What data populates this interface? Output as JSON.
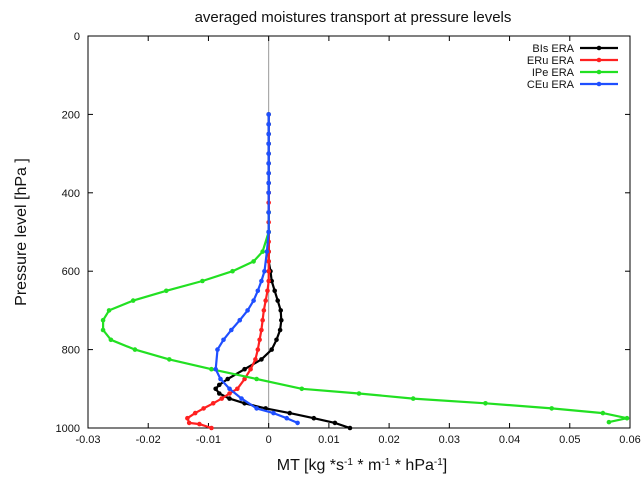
{
  "chart_data": {
    "type": "line",
    "title": "averaged moistures transport at pressure levels",
    "xlabel": "MT [kg *s",
    "xlabel_parts": [
      "MT [kg *s",
      "-1",
      " * m",
      "-1",
      " * hPa",
      "-1",
      "]"
    ],
    "ylabel": "Pressure level  [hPa ]",
    "xlim": [
      -0.03,
      0.06
    ],
    "ylim": [
      1000,
      0
    ],
    "y_inverted": true,
    "xticks": [
      -0.03,
      -0.02,
      -0.01,
      0,
      0.01,
      0.02,
      0.03,
      0.04,
      0.05,
      0.06
    ],
    "xtick_labels": [
      "-0.03",
      "-0.02",
      "-0.01",
      "0",
      "0.01",
      "0.02",
      "0.03",
      "0.04",
      "0.05",
      "0.06"
    ],
    "yticks": [
      0,
      200,
      400,
      600,
      800,
      1000
    ],
    "ytick_labels": [
      "0",
      "200",
      "400",
      "600",
      "800",
      "1000"
    ],
    "zero_line": true,
    "grid": false,
    "legend_position": "top-right",
    "series": [
      {
        "name": "BIs ERA",
        "color": "#000000",
        "x": [
          0,
          0,
          0,
          0,
          0,
          0,
          0,
          0,
          0,
          0,
          0,
          0,
          0,
          0.0003,
          0.0005,
          0.001,
          0.0015,
          0.002,
          0.0021,
          0.0019,
          0.0013,
          0.0005,
          -0.0012,
          -0.004,
          -0.0068,
          -0.0082,
          -0.0088,
          -0.0082,
          -0.0065,
          -0.004,
          -0.0005,
          0.0035,
          0.0075,
          0.011,
          0.0135
        ],
        "y": [
          200,
          225,
          250,
          275,
          300,
          325,
          350,
          375,
          400,
          450,
          500,
          550,
          575,
          600,
          625,
          650,
          675,
          700,
          725,
          750,
          775,
          800,
          825,
          850,
          875,
          890,
          900,
          912,
          925,
          937,
          950,
          962,
          975,
          987,
          1000
        ]
      },
      {
        "name": "ERu ERA",
        "color": "#ff2020",
        "x": [
          0,
          0,
          0,
          0,
          0,
          0,
          0,
          0,
          0,
          0,
          -0.0002,
          -0.0005,
          -0.0008,
          -0.001,
          -0.0012,
          -0.0015,
          -0.0018,
          -0.0022,
          -0.003,
          -0.004,
          -0.0052,
          -0.0065,
          -0.0078,
          -0.0092,
          -0.0108,
          -0.0122,
          -0.0135,
          -0.0132,
          -0.0115,
          -0.0095
        ],
        "y": [
          400,
          425,
          450,
          475,
          500,
          525,
          550,
          575,
          600,
          625,
          650,
          675,
          700,
          725,
          750,
          775,
          800,
          825,
          850,
          875,
          900,
          912,
          925,
          937,
          950,
          962,
          975,
          987,
          990,
          1000
        ]
      },
      {
        "name": "IPe ERA",
        "color": "#22e022",
        "x": [
          0,
          0,
          -0.001,
          -0.0025,
          -0.006,
          -0.011,
          -0.017,
          -0.0225,
          -0.0265,
          -0.0275,
          -0.0275,
          -0.0262,
          -0.0222,
          -0.0165,
          -0.0095,
          -0.002,
          0.0055,
          0.015,
          0.024,
          0.036,
          0.047,
          0.0555,
          0.0595,
          0.0565
        ],
        "y": [
          450,
          500,
          550,
          575,
          600,
          625,
          650,
          675,
          700,
          725,
          750,
          775,
          800,
          825,
          850,
          875,
          900,
          912,
          925,
          937,
          950,
          962,
          975,
          985
        ]
      },
      {
        "name": "CEu ERA",
        "color": "#1f4fff",
        "x": [
          0,
          0,
          0,
          0,
          0,
          0,
          0,
          0,
          0,
          0,
          0,
          -0.0003,
          -0.0007,
          -0.0012,
          -0.0018,
          -0.0025,
          -0.0035,
          -0.0048,
          -0.0062,
          -0.0075,
          -0.0085,
          -0.0088,
          -0.008,
          -0.0065,
          -0.0045,
          -0.002,
          0.0008,
          0.003,
          0.0048
        ],
        "y": [
          200,
          225,
          250,
          275,
          300,
          325,
          350,
          375,
          400,
          450,
          500,
          550,
          600,
          625,
          650,
          675,
          700,
          725,
          750,
          775,
          800,
          850,
          875,
          900,
          925,
          950,
          962,
          975,
          987
        ]
      }
    ]
  }
}
